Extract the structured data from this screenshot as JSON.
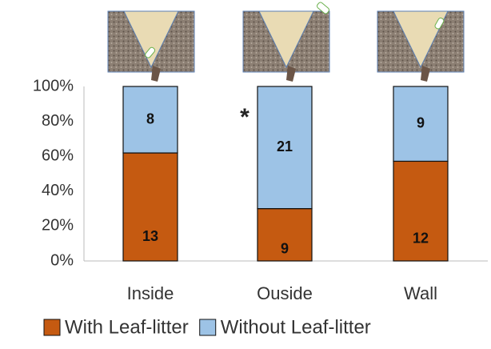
{
  "chart_data": {
    "type": "bar",
    "stacking": "percent",
    "categories": [
      "Inside",
      "Ouside",
      "Wall"
    ],
    "series": [
      {
        "name": "With Leaf-litter",
        "color": "#c55a11",
        "values": [
          13,
          9,
          12
        ]
      },
      {
        "name": "Without Leaf-litter",
        "color": "#9dc3e6",
        "values": [
          8,
          21,
          9
        ]
      }
    ],
    "ylim": [
      0,
      100
    ],
    "yticks": [
      {
        "value": 0,
        "label": "0%"
      },
      {
        "value": 20,
        "label": "20%"
      },
      {
        "value": 40,
        "label": "40%"
      },
      {
        "value": 60,
        "label": "60%"
      },
      {
        "value": 80,
        "label": "80%"
      },
      {
        "value": 100,
        "label": "100%"
      }
    ],
    "grid": false,
    "annotations": [
      {
        "text": "*",
        "category": 1
      }
    ],
    "legend": "bottom"
  }
}
